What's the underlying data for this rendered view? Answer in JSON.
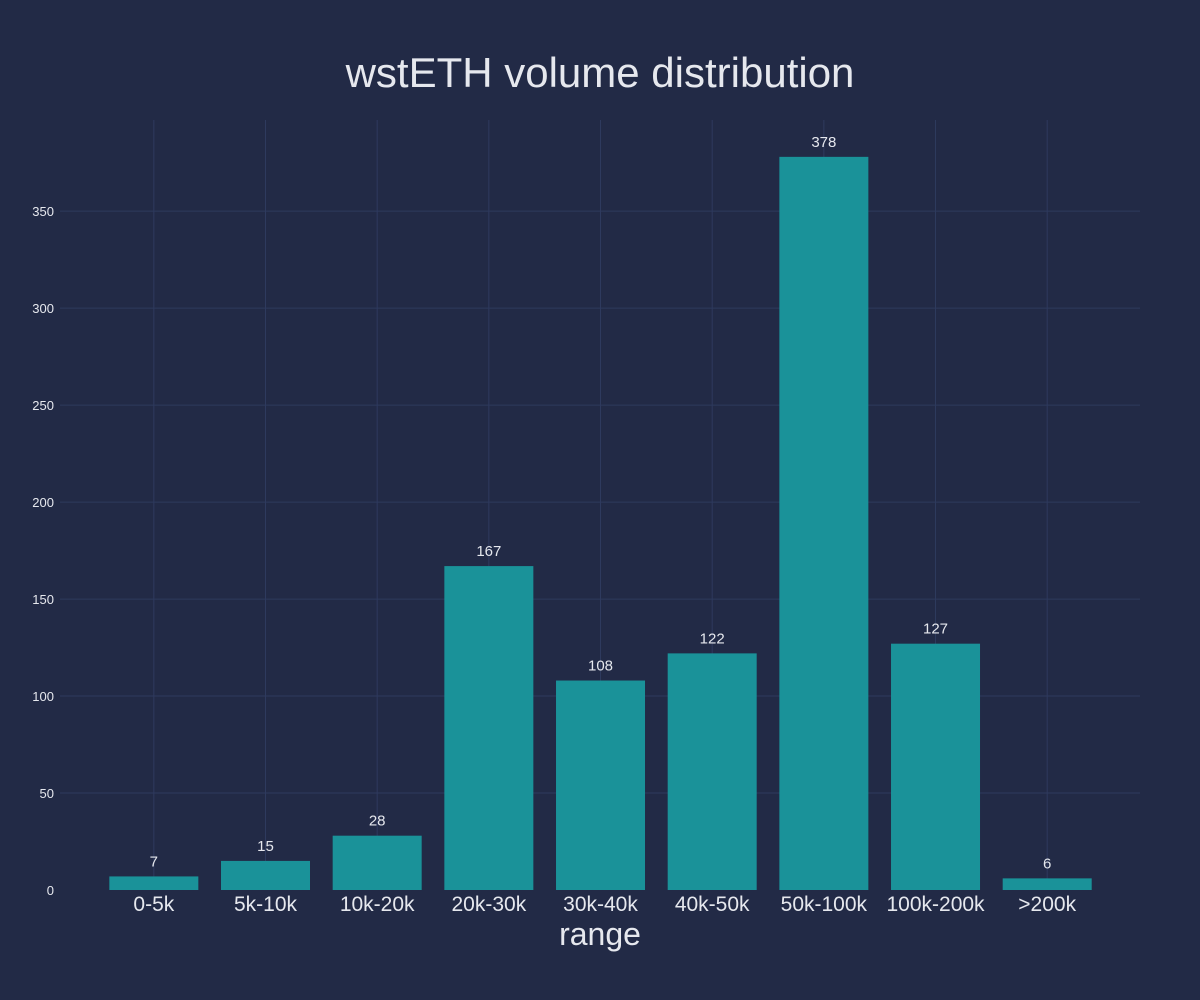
{
  "colors": {
    "background": "#222a46",
    "grid": "#2e3a5e",
    "bar": "#1a9299",
    "text": "#e6e8ee"
  },
  "chart_data": {
    "type": "bar",
    "title": "wstETH volume distribution",
    "xlabel": "range",
    "ylabel": "",
    "categories": [
      "0-5k",
      "5k-10k",
      "10k-20k",
      "20k-30k",
      "30k-40k",
      "40k-50k",
      "50k-100k",
      "100k-200k",
      ">200k"
    ],
    "values": [
      7,
      15,
      28,
      167,
      108,
      122,
      378,
      127,
      6
    ],
    "data_labels": [
      "7",
      "15",
      "28",
      "167",
      "108",
      "122",
      "378",
      "127",
      "6"
    ],
    "ylim": [
      0,
      397
    ],
    "yticks": [
      0,
      50,
      100,
      150,
      200,
      250,
      300,
      350
    ],
    "ytick_labels": [
      "0",
      "50",
      "100",
      "150",
      "200",
      "250",
      "300",
      "350"
    ],
    "grid": true,
    "legend": "none"
  }
}
